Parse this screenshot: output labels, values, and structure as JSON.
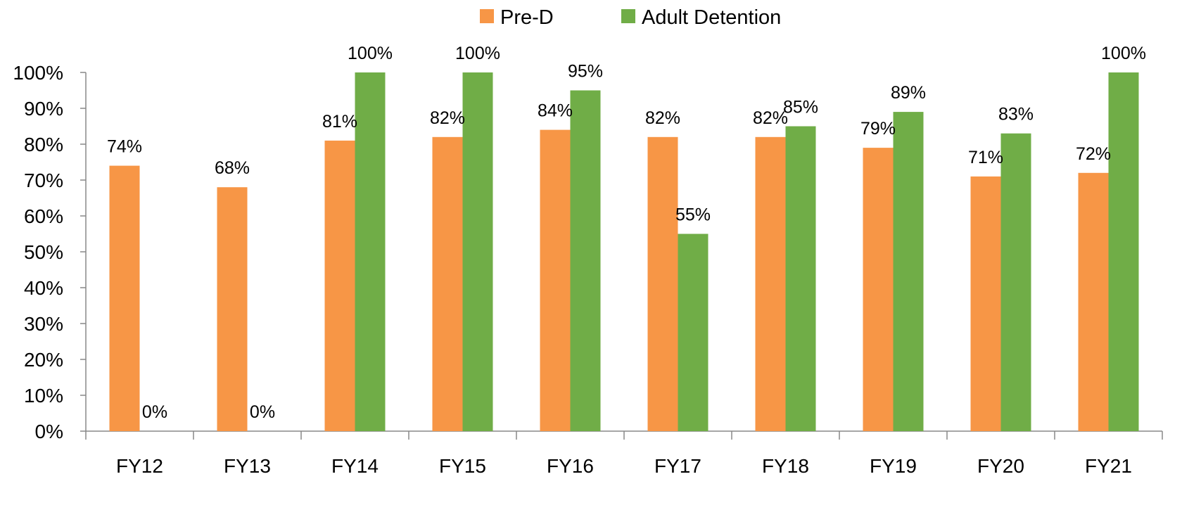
{
  "chart_data": {
    "type": "bar",
    "title": "",
    "xlabel": "",
    "ylabel": "",
    "categories": [
      "FY12",
      "FY13",
      "FY14",
      "FY15",
      "FY16",
      "FY17",
      "FY18",
      "FY19",
      "FY20",
      "FY21"
    ],
    "series": [
      {
        "name": "Pre-D",
        "color": "#F79646",
        "values": [
          74,
          68,
          81,
          82,
          84,
          82,
          82,
          79,
          71,
          72
        ],
        "labels": [
          "74%",
          "68%",
          "81%",
          "82%",
          "84%",
          "82%",
          "82%",
          "79%",
          "71%",
          "72%"
        ]
      },
      {
        "name": "Adult Detention",
        "color": "#70AD47",
        "values": [
          0,
          0,
          100,
          100,
          95,
          55,
          85,
          89,
          83,
          100
        ],
        "labels": [
          "0%",
          "0%",
          "100%",
          "100%",
          "95%",
          "55%",
          "85%",
          "89%",
          "83%",
          "100%"
        ]
      }
    ],
    "ylim": [
      0,
      100
    ],
    "yticks": [
      0,
      10,
      20,
      30,
      40,
      50,
      60,
      70,
      80,
      90,
      100
    ],
    "ytick_labels": [
      "0%",
      "10%",
      "20%",
      "30%",
      "40%",
      "50%",
      "60%",
      "70%",
      "80%",
      "90%",
      "100%"
    ],
    "grid": false,
    "legend_position": "top-center"
  }
}
